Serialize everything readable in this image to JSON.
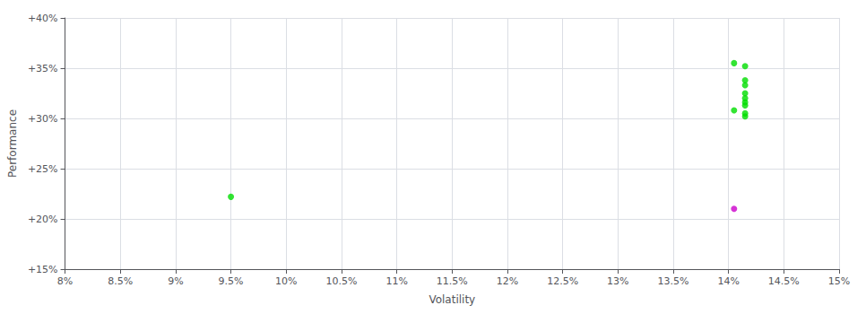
{
  "chart_data": {
    "type": "scatter",
    "xlabel": "Volatility",
    "ylabel": "Performance",
    "xlim": [
      0.08,
      0.15
    ],
    "ylim": [
      0.15,
      0.4
    ],
    "xticks": [
      {
        "value": 0.08,
        "label": "8%"
      },
      {
        "value": 0.085,
        "label": "8.5%"
      },
      {
        "value": 0.09,
        "label": "9%"
      },
      {
        "value": 0.095,
        "label": "9.5%"
      },
      {
        "value": 0.1,
        "label": "10%"
      },
      {
        "value": 0.105,
        "label": "10.5%"
      },
      {
        "value": 0.11,
        "label": "11%"
      },
      {
        "value": 0.115,
        "label": "11.5%"
      },
      {
        "value": 0.12,
        "label": "12%"
      },
      {
        "value": 0.125,
        "label": "12.5%"
      },
      {
        "value": 0.13,
        "label": "13%"
      },
      {
        "value": 0.135,
        "label": "13.5%"
      },
      {
        "value": 0.14,
        "label": "14%"
      },
      {
        "value": 0.145,
        "label": "14.5%"
      },
      {
        "value": 0.15,
        "label": "15%"
      }
    ],
    "yticks": [
      {
        "value": 0.15,
        "label": "+15%"
      },
      {
        "value": 0.2,
        "label": "+20%"
      },
      {
        "value": 0.25,
        "label": "+25%"
      },
      {
        "value": 0.3,
        "label": "+30%"
      },
      {
        "value": 0.35,
        "label": "+35%"
      },
      {
        "value": 0.4,
        "label": "+40%"
      }
    ],
    "grid": true,
    "series": [
      {
        "color": "#00dd00",
        "x": [
          0.095,
          0.1405,
          0.1415,
          0.1415,
          0.1415,
          0.1415,
          0.1415,
          0.1415,
          0.1415,
          0.1405,
          0.1415,
          0.1415
        ],
        "values": [
          0.222,
          0.355,
          0.352,
          0.338,
          0.333,
          0.325,
          0.32,
          0.316,
          0.313,
          0.308,
          0.305,
          0.302
        ]
      },
      {
        "color": "#cc00cc",
        "x": [
          0.1405
        ],
        "values": [
          0.21
        ]
      }
    ]
  }
}
